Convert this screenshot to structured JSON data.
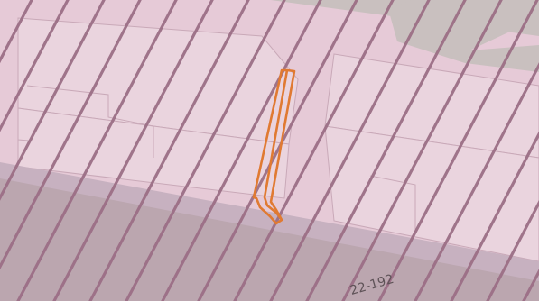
{
  "map": {
    "parcel_label": "22-192",
    "colors": {
      "parcel_fill": "#e6cad7",
      "parcel_outline": "#c9a9b8",
      "street_band": "#c7b1c0",
      "lower_area": "#bba6af",
      "upper_area": "#c9c0bf",
      "hatch": "#9c6f86",
      "selected_outline": "#e07a32"
    },
    "icons": [
      "selected-parcel-outline",
      "diagonal-hatch-overlay"
    ]
  }
}
